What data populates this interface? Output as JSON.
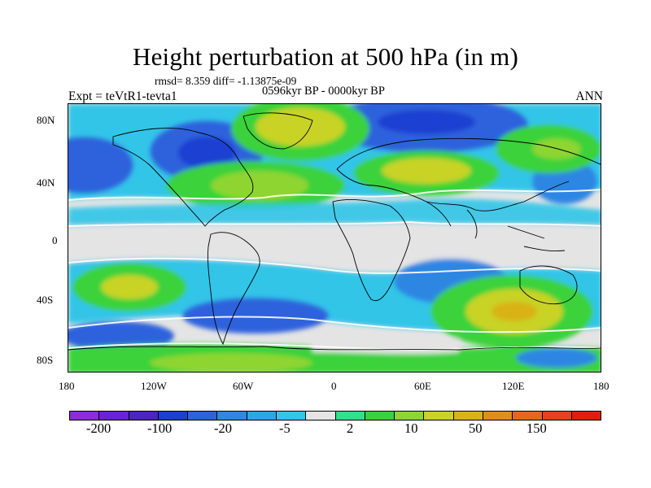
{
  "figure": {
    "title": "Height perturbation at 500 hPa (in m)",
    "stats": "rmsd= 8.359 diff= -1.13875e-09",
    "period": "0596kyr BP - 0000kyr BP",
    "experiment": "Expt = teVtR1-tevta1",
    "season": "ANN"
  },
  "map": {
    "lat_ticks": [
      "80N",
      "40N",
      "0",
      "40S",
      "80S"
    ],
    "lon_ticks": [
      "180",
      "120W",
      "60W",
      "0",
      "60E",
      "120E",
      "180"
    ],
    "background_color": "#e4e4e4",
    "coastline_color": "#000000"
  },
  "colorbar": {
    "colors": [
      "#8a2be2",
      "#6a22d8",
      "#4a25c4",
      "#1c3fd1",
      "#2d62dc",
      "#2f86e3",
      "#2aa7e8",
      "#32c5e8",
      "#e4e4e4",
      "#2fe08c",
      "#3ad23a",
      "#8ed532",
      "#c8d326",
      "#d9b216",
      "#e08e18",
      "#e8661a",
      "#e6401c",
      "#e01e0e"
    ],
    "labels": [
      "-200",
      "-100",
      "-20",
      "-5",
      "2",
      "10",
      "50",
      "150"
    ]
  }
}
